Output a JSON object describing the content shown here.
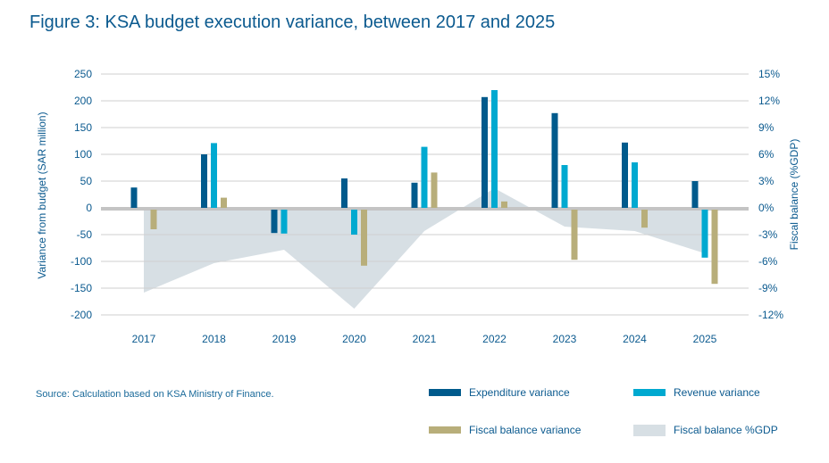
{
  "title": "Figure 3: KSA budget execution variance, between 2017 and 2025",
  "source": "Source: Calculation based on KSA Ministry of Finance.",
  "colors": {
    "expenditure": "#005a8c",
    "revenue": "#00a9d0",
    "fiscal_variance": "#b8ae7a",
    "fiscal_balance_area": "#d7dfe4",
    "zero_line": "#c4c4c4",
    "gridline": "#cfcfcf",
    "text": "#0b5a8f"
  },
  "chart_data": {
    "type": "bar",
    "title": "Figure 3: KSA budget execution variance, between 2017 and 2025",
    "categories": [
      "2017",
      "2018",
      "2019",
      "2020",
      "2021",
      "2022",
      "2023",
      "2024",
      "2025"
    ],
    "series": [
      {
        "name": "Expenditure variance",
        "type": "bar",
        "axis": "left",
        "values": [
          38,
          100,
          -47,
          55,
          47,
          207,
          177,
          122,
          50
        ]
      },
      {
        "name": "Revenue variance",
        "type": "bar",
        "axis": "left",
        "values": [
          null,
          121,
          -48,
          -50,
          114,
          220,
          80,
          85,
          -93
        ]
      },
      {
        "name": "Fiscal balance variance",
        "type": "bar",
        "axis": "left",
        "values": [
          -40,
          19,
          null,
          -108,
          66,
          12,
          -97,
          -37,
          -142
        ]
      },
      {
        "name": "Fiscal balance %GDP",
        "type": "area",
        "axis": "right",
        "values": [
          -9.5,
          -6.2,
          -4.7,
          -11.3,
          -2.6,
          2.2,
          -2.1,
          -2.6,
          -5.1
        ]
      }
    ],
    "ylabel": "Variance from budget (SAR million)",
    "y2label": "Fiscal balance (%GDP)",
    "xlabel": "",
    "ylim": [
      -200,
      250
    ],
    "y2lim": [
      -12,
      15
    ],
    "yticks": [
      "250",
      "200",
      "150",
      "100",
      "50",
      "0",
      "-50",
      "-100",
      "-150",
      "-200"
    ],
    "y2ticks": [
      "15%",
      "12%",
      "9%",
      "6%",
      "3%",
      "0%",
      "-3%",
      "-6%",
      "-9%",
      "-12%"
    ],
    "grid": true,
    "legend_position": "bottom-right"
  },
  "legend": [
    {
      "label": "Expenditure variance",
      "key": "expenditure"
    },
    {
      "label": "Revenue variance",
      "key": "revenue"
    },
    {
      "label": "Fiscal balance variance",
      "key": "fiscal_variance"
    },
    {
      "label": "Fiscal balance %GDP",
      "key": "fiscal_balance_area"
    }
  ]
}
